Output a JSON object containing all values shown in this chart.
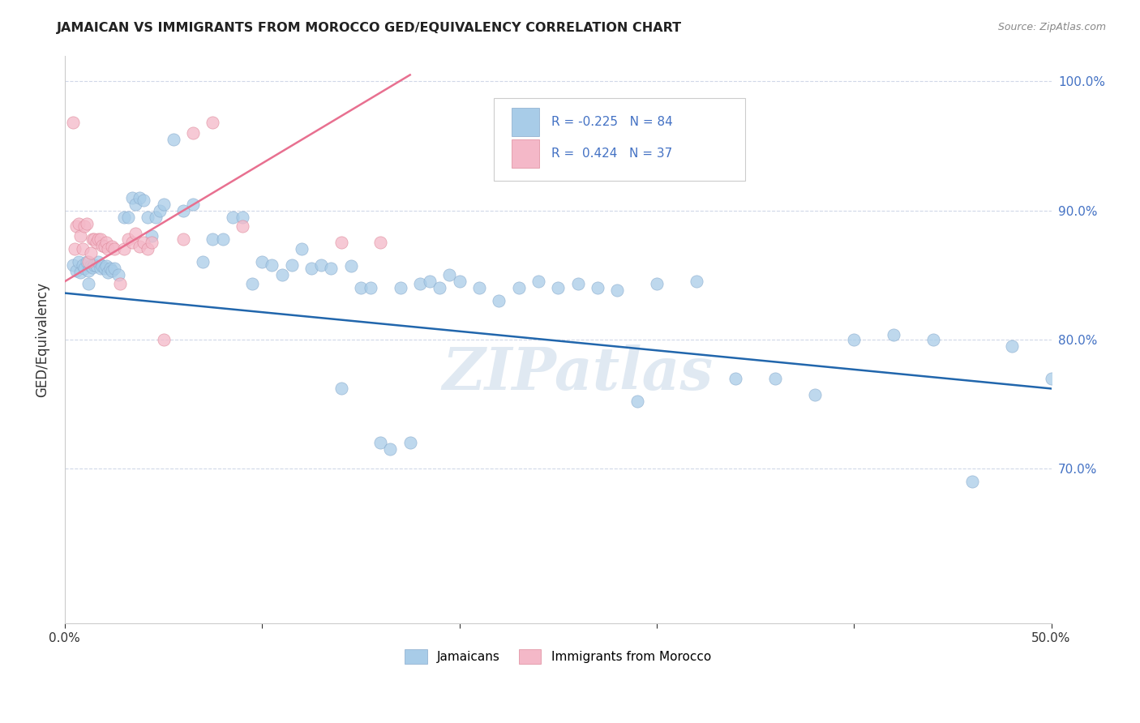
{
  "title": "JAMAICAN VS IMMIGRANTS FROM MOROCCO GED/EQUIVALENCY CORRELATION CHART",
  "source": "Source: ZipAtlas.com",
  "ylabel": "GED/Equivalency",
  "xlim": [
    0.0,
    0.5
  ],
  "ylim": [
    0.58,
    1.02
  ],
  "yticks": [
    0.7,
    0.8,
    0.9,
    1.0
  ],
  "ytick_labels": [
    "70.0%",
    "80.0%",
    "90.0%",
    "100.0%"
  ],
  "xticks": [
    0.0,
    0.1,
    0.2,
    0.3,
    0.4,
    0.5
  ],
  "xtick_labels": [
    "0.0%",
    "",
    "",
    "",
    "",
    "50.0%"
  ],
  "blue_color": "#a8cce8",
  "pink_color": "#f4b8c8",
  "blue_line_color": "#2166ac",
  "pink_line_color": "#e87090",
  "r_blue": -0.225,
  "n_blue": 84,
  "r_pink": 0.424,
  "n_pink": 37,
  "legend_label_blue": "Jamaicans",
  "legend_label_pink": "Immigrants from Morocco",
  "blue_line_x0": 0.0,
  "blue_line_y0": 0.836,
  "blue_line_x1": 0.5,
  "blue_line_y1": 0.762,
  "pink_line_x0": 0.0,
  "pink_line_y0": 0.845,
  "pink_line_x1": 0.175,
  "pink_line_y1": 1.005,
  "blue_scatter_x": [
    0.004,
    0.006,
    0.007,
    0.008,
    0.009,
    0.01,
    0.011,
    0.012,
    0.013,
    0.014,
    0.015,
    0.016,
    0.017,
    0.018,
    0.019,
    0.02,
    0.021,
    0.022,
    0.023,
    0.024,
    0.025,
    0.027,
    0.03,
    0.032,
    0.034,
    0.036,
    0.038,
    0.04,
    0.042,
    0.044,
    0.046,
    0.048,
    0.05,
    0.055,
    0.06,
    0.065,
    0.07,
    0.075,
    0.08,
    0.085,
    0.09,
    0.095,
    0.1,
    0.105,
    0.11,
    0.115,
    0.12,
    0.125,
    0.13,
    0.135,
    0.14,
    0.145,
    0.15,
    0.155,
    0.16,
    0.165,
    0.17,
    0.175,
    0.18,
    0.185,
    0.19,
    0.195,
    0.2,
    0.21,
    0.22,
    0.23,
    0.24,
    0.25,
    0.26,
    0.27,
    0.28,
    0.29,
    0.3,
    0.32,
    0.34,
    0.36,
    0.38,
    0.4,
    0.42,
    0.44,
    0.46,
    0.48,
    0.5,
    0.012
  ],
  "blue_scatter_y": [
    0.858,
    0.853,
    0.86,
    0.852,
    0.858,
    0.855,
    0.86,
    0.853,
    0.857,
    0.856,
    0.858,
    0.857,
    0.86,
    0.855,
    0.857,
    0.855,
    0.857,
    0.852,
    0.855,
    0.853,
    0.855,
    0.85,
    0.895,
    0.895,
    0.91,
    0.905,
    0.91,
    0.908,
    0.895,
    0.88,
    0.895,
    0.9,
    0.905,
    0.955,
    0.9,
    0.905,
    0.86,
    0.878,
    0.878,
    0.895,
    0.895,
    0.843,
    0.86,
    0.858,
    0.85,
    0.858,
    0.87,
    0.855,
    0.858,
    0.855,
    0.762,
    0.857,
    0.84,
    0.84,
    0.72,
    0.715,
    0.84,
    0.72,
    0.843,
    0.845,
    0.84,
    0.85,
    0.845,
    0.84,
    0.83,
    0.84,
    0.845,
    0.84,
    0.843,
    0.84,
    0.838,
    0.752,
    0.843,
    0.845,
    0.77,
    0.77,
    0.757,
    0.8,
    0.804,
    0.8,
    0.69,
    0.795,
    0.77,
    0.843
  ],
  "pink_scatter_x": [
    0.004,
    0.005,
    0.006,
    0.007,
    0.008,
    0.009,
    0.01,
    0.011,
    0.012,
    0.013,
    0.014,
    0.015,
    0.016,
    0.017,
    0.018,
    0.019,
    0.02,
    0.021,
    0.022,
    0.024,
    0.025,
    0.028,
    0.03,
    0.032,
    0.034,
    0.036,
    0.038,
    0.04,
    0.042,
    0.044,
    0.05,
    0.06,
    0.065,
    0.075,
    0.09,
    0.14,
    0.16
  ],
  "pink_scatter_y": [
    0.968,
    0.87,
    0.888,
    0.89,
    0.88,
    0.87,
    0.888,
    0.89,
    0.86,
    0.867,
    0.878,
    0.878,
    0.875,
    0.878,
    0.878,
    0.873,
    0.872,
    0.875,
    0.87,
    0.872,
    0.87,
    0.843,
    0.87,
    0.878,
    0.875,
    0.882,
    0.872,
    0.875,
    0.87,
    0.875,
    0.8,
    0.878,
    0.96,
    0.968,
    0.888,
    0.875,
    0.875
  ],
  "watermark": "ZIPatlas",
  "title_color": "#222222",
  "axis_color": "#4472c4",
  "background_color": "#ffffff",
  "grid_color": "#d0d8e8"
}
